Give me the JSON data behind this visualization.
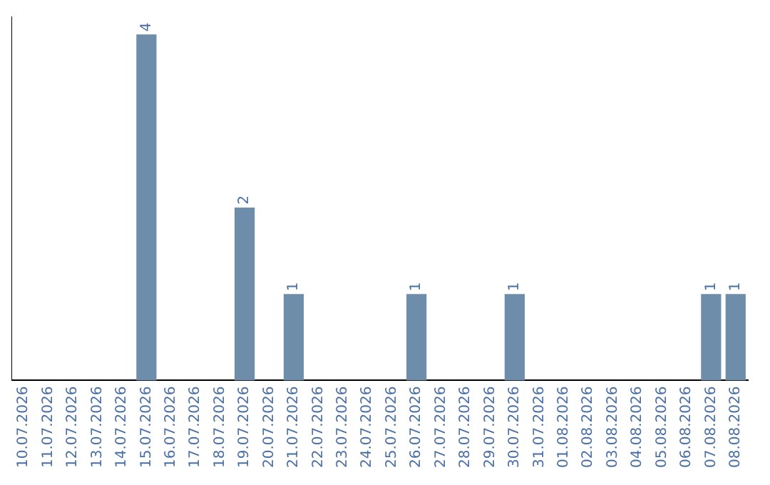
{
  "chart_data": {
    "type": "bar",
    "categories": [
      "10.07.2026",
      "11.07.2026",
      "12.07.2026",
      "13.07.2026",
      "14.07.2026",
      "15.07.2026",
      "16.07.2026",
      "17.07.2026",
      "18.07.2026",
      "19.07.2026",
      "20.07.2026",
      "21.07.2026",
      "22.07.2026",
      "23.07.2026",
      "24.07.2026",
      "25.07.2026",
      "26.07.2026",
      "27.07.2026",
      "28.07.2026",
      "29.07.2026",
      "30.07.2026",
      "31.07.2026",
      "01.08.2026",
      "02.08.2026",
      "03.08.2026",
      "04.08.2026",
      "05.08.2026",
      "06.08.2026",
      "07.08.2026",
      "08.08.2026"
    ],
    "values": [
      0,
      0,
      0,
      0,
      0,
      4,
      0,
      0,
      0,
      2,
      0,
      1,
      0,
      0,
      0,
      0,
      1,
      0,
      0,
      0,
      1,
      0,
      0,
      0,
      0,
      0,
      0,
      0,
      1,
      1
    ],
    "value_labels": [
      null,
      null,
      null,
      null,
      null,
      "4",
      null,
      null,
      null,
      "2",
      null,
      "1",
      null,
      null,
      null,
      null,
      "1",
      null,
      null,
      null,
      "1",
      null,
      null,
      null,
      null,
      null,
      null,
      null,
      "1",
      "1"
    ],
    "color": "#6e8dab",
    "ylim": [
      0,
      4.2
    ],
    "tick_labels": "x",
    "grid": false,
    "legend": false
  }
}
